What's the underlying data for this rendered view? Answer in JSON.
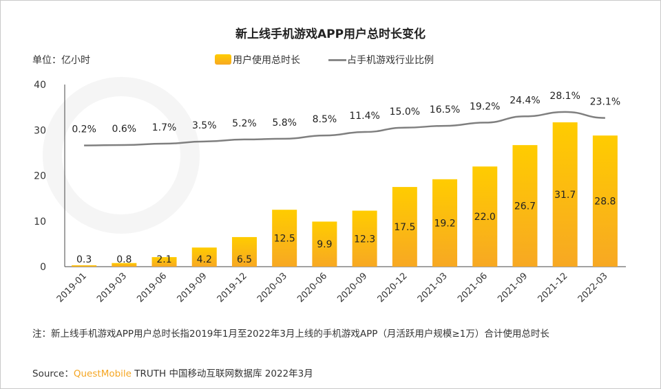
{
  "chart_data": {
    "type": "bar",
    "title": "新上线手机游戏APP用户总时长变化",
    "unit_label": "单位：亿小时",
    "categories": [
      "2019-01",
      "2019-03",
      "2019-06",
      "2019-09",
      "2019-12",
      "2020-03",
      "2020-06",
      "2020-09",
      "2020-12",
      "2021-03",
      "2021-06",
      "2021-09",
      "2021-12",
      "2022-03"
    ],
    "ylim": [
      0,
      40
    ],
    "yticks": [
      "0",
      "10",
      "20",
      "30",
      "40"
    ],
    "series": [
      {
        "name": "用户使用总时长",
        "type": "bar",
        "color": "#ffc000",
        "values": [
          0.3,
          0.8,
          2.1,
          4.2,
          6.5,
          12.5,
          9.9,
          12.3,
          17.5,
          19.2,
          22.0,
          26.7,
          31.7,
          28.8
        ],
        "labels": [
          "0.3",
          "0.8",
          "2.1",
          "4.2",
          "6.5",
          "12.5",
          "9.9",
          "12.3",
          "17.5",
          "19.2",
          "22.0",
          "26.7",
          "31.7",
          "28.8"
        ]
      },
      {
        "name": "占手机游戏行业比例",
        "type": "line",
        "color": "#7f7f7f",
        "secondary_axis": true,
        "values": [
          0.2,
          0.6,
          1.7,
          3.5,
          5.2,
          5.8,
          8.5,
          11.4,
          15.0,
          16.5,
          19.2,
          24.4,
          28.1,
          23.1
        ],
        "labels": [
          "0.2%",
          "0.6%",
          "1.7%",
          "3.5%",
          "5.2%",
          "5.8%",
          "8.5%",
          "11.4%",
          "15.0%",
          "16.5%",
          "19.2%",
          "24.4%",
          "28.1%",
          "23.1%"
        ]
      }
    ],
    "legend": "top"
  },
  "note": "注：新上线手机游戏APP用户总时长指2019年1月至2022年3月上线的手机游戏APP（月活跃用户规模≥1万）合计使用总时长",
  "source": {
    "prefix": "Source：",
    "brand": "QuestMobile",
    "rest": " TRUTH 中国移动互联网数据库 2022年3月"
  },
  "watermark": "QUESTMOBILE"
}
